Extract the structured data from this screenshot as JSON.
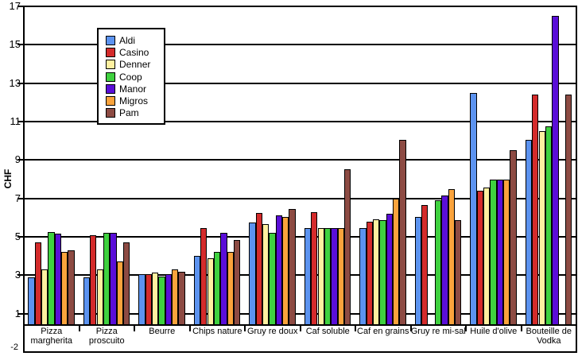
{
  "chart_data": {
    "type": "bar",
    "title": "",
    "xlabel": "",
    "ylabel": "CHF",
    "ylim": [
      -1,
      17
    ],
    "baseline": 0,
    "grid": true,
    "legend_position": "inset-top-left",
    "y_ticks": [
      17,
      15,
      13,
      11,
      9,
      7,
      5,
      3,
      1
    ],
    "y_axis_corner_label": "-2",
    "categories": [
      "Pizza margherita",
      "Pizza proscuito",
      "Beurre",
      "Chips nature",
      "Gruy re doux",
      "Caf  soluble",
      "Caf  en grains",
      "Gruy re mi-sal",
      "Huile d'olive",
      "Bouteille de Vodka"
    ],
    "series": [
      {
        "name": "Aldi",
        "color": "#5C93F0",
        "values": [
          2.9,
          2.9,
          3.05,
          4.0,
          5.75,
          5.45,
          5.45,
          6.05,
          12.5,
          10.05
        ]
      },
      {
        "name": "Casino",
        "color": "#D42B2B",
        "values": [
          4.7,
          5.1,
          3.05,
          5.45,
          6.25,
          6.3,
          5.8,
          6.65,
          7.4,
          12.4
        ]
      },
      {
        "name": "Denner",
        "color": "#FFF0A0",
        "values": [
          3.3,
          3.3,
          3.15,
          3.9,
          5.65,
          5.45,
          5.9,
          null,
          7.55,
          10.5
        ]
      },
      {
        "name": "Coop",
        "color": "#3FD13F",
        "values": [
          5.25,
          5.2,
          2.95,
          4.2,
          5.2,
          5.45,
          5.85,
          6.9,
          8.0,
          10.75
        ]
      },
      {
        "name": "Manor",
        "color": "#5A0ED8",
        "values": [
          5.15,
          5.2,
          3.05,
          5.2,
          6.1,
          5.45,
          6.2,
          7.15,
          8.0,
          16.5
        ]
      },
      {
        "name": "Migros",
        "color": "#FAA33C",
        "values": [
          4.2,
          3.7,
          3.3,
          4.2,
          6.05,
          5.45,
          7.0,
          7.5,
          8.0,
          null
        ]
      },
      {
        "name": "Pam",
        "color": "#8D4B43",
        "values": [
          4.3,
          4.7,
          3.2,
          4.85,
          6.45,
          8.5,
          10.05,
          5.85,
          9.5,
          12.4
        ]
      }
    ]
  }
}
